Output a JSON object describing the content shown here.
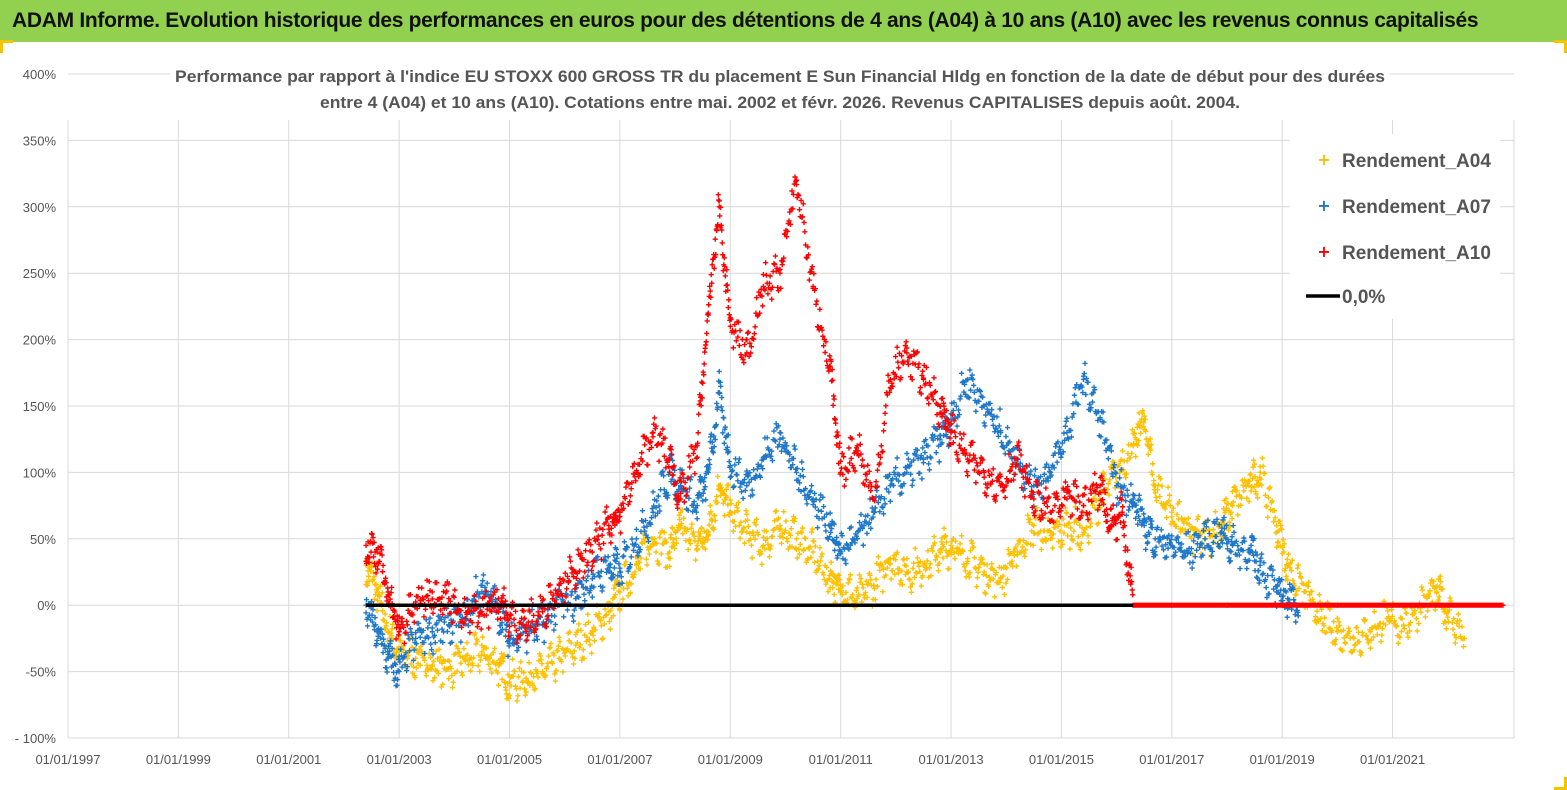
{
  "header": {
    "banner": "ADAM Informe. Evolution historique des performances en euros pour des détentions de 4 ans (A04) à 10 ans (A10) avec les revenus connus capitalisés"
  },
  "colors": {
    "banner_bg": "#92d050",
    "A04": "#ffc000",
    "A07": "#1f77c8",
    "A10": "#ff0000",
    "zero_line": "#000000",
    "grid": "#d9d9d9"
  },
  "chart_data": {
    "type": "scatter",
    "title_line1": "Performance par rapport à l'indice EU STOXX 600 GROSS TR  du placement E Sun Financial Hldg  en fonction de la date de début pour des durées",
    "title_line2": "entre 4 (A04) et 10 ans (A10). Cotations entre mai. 2002 et févr. 2026. Revenus CAPITALISES depuis août. 2004.",
    "x_tick_labels": [
      "01/01/1997",
      "01/01/1999",
      "01/01/2001",
      "01/01/2003",
      "01/01/2005",
      "01/01/2007",
      "01/01/2009",
      "01/01/2011",
      "01/01/2013",
      "01/01/2015",
      "01/01/2017",
      "01/01/2019",
      "01/01/2021"
    ],
    "x_ticks": [
      1997,
      1999,
      2001,
      2003,
      2005,
      2007,
      2009,
      2011,
      2013,
      2015,
      2017,
      2019,
      2021
    ],
    "xlim": [
      1997,
      2023.2
    ],
    "y_tick_labels": [
      "400%",
      "350%",
      "300%",
      "250%",
      "200%",
      "150%",
      "100%",
      "50%",
      "0%",
      "-50%",
      "- 100%"
    ],
    "y_ticks": [
      400,
      350,
      300,
      250,
      200,
      150,
      100,
      50,
      0,
      -50,
      -100
    ],
    "ylim": [
      -100,
      400
    ],
    "grid": true,
    "legend_position": "top-right",
    "series": [
      {
        "name": "Rendement_A04",
        "color": "#ffc000",
        "points": [
          [
            2002.4,
            30
          ],
          [
            2002.6,
            10
          ],
          [
            2002.8,
            -20
          ],
          [
            2003.0,
            -35
          ],
          [
            2003.3,
            -40
          ],
          [
            2003.6,
            -45
          ],
          [
            2003.9,
            -48
          ],
          [
            2004.2,
            -42
          ],
          [
            2004.5,
            -35
          ],
          [
            2004.8,
            -45
          ],
          [
            2005.0,
            -58
          ],
          [
            2005.3,
            -55
          ],
          [
            2005.6,
            -50
          ],
          [
            2005.9,
            -40
          ],
          [
            2006.2,
            -30
          ],
          [
            2006.5,
            -20
          ],
          [
            2006.8,
            -5
          ],
          [
            2007.0,
            10
          ],
          [
            2007.3,
            30
          ],
          [
            2007.6,
            50
          ],
          [
            2007.9,
            40
          ],
          [
            2008.1,
            60
          ],
          [
            2008.4,
            45
          ],
          [
            2008.6,
            55
          ],
          [
            2008.8,
            90
          ],
          [
            2009.0,
            70
          ],
          [
            2009.3,
            55
          ],
          [
            2009.6,
            45
          ],
          [
            2009.9,
            60
          ],
          [
            2010.2,
            50
          ],
          [
            2010.5,
            40
          ],
          [
            2010.8,
            20
          ],
          [
            2011.0,
            15
          ],
          [
            2011.3,
            5
          ],
          [
            2011.6,
            15
          ],
          [
            2011.9,
            35
          ],
          [
            2012.2,
            25
          ],
          [
            2012.5,
            30
          ],
          [
            2012.8,
            40
          ],
          [
            2013.0,
            45
          ],
          [
            2013.3,
            35
          ],
          [
            2013.6,
            25
          ],
          [
            2013.9,
            20
          ],
          [
            2014.2,
            40
          ],
          [
            2014.5,
            60
          ],
          [
            2014.8,
            50
          ],
          [
            2015.1,
            60
          ],
          [
            2015.4,
            55
          ],
          [
            2015.7,
            80
          ],
          [
            2016.0,
            100
          ],
          [
            2016.3,
            120
          ],
          [
            2016.5,
            140
          ],
          [
            2016.7,
            90
          ],
          [
            2017.0,
            70
          ],
          [
            2017.3,
            55
          ],
          [
            2017.6,
            50
          ],
          [
            2017.9,
            60
          ],
          [
            2018.1,
            75
          ],
          [
            2018.4,
            90
          ],
          [
            2018.6,
            100
          ],
          [
            2018.9,
            60
          ],
          [
            2019.1,
            30
          ],
          [
            2019.4,
            10
          ],
          [
            2019.7,
            -10
          ],
          [
            2020.0,
            -20
          ],
          [
            2020.3,
            -25
          ],
          [
            2020.6,
            -20
          ],
          [
            2020.9,
            -10
          ],
          [
            2021.2,
            -15
          ],
          [
            2021.5,
            0
          ],
          [
            2021.8,
            10
          ],
          [
            2022.0,
            -5
          ],
          [
            2022.3,
            -25
          ]
        ]
      },
      {
        "name": "Rendement_A07",
        "color": "#1f77c8",
        "points": [
          [
            2002.4,
            0
          ],
          [
            2002.6,
            -20
          ],
          [
            2002.8,
            -40
          ],
          [
            2003.0,
            -50
          ],
          [
            2003.3,
            -25
          ],
          [
            2003.6,
            -20
          ],
          [
            2003.9,
            -15
          ],
          [
            2004.2,
            -10
          ],
          [
            2004.5,
            15
          ],
          [
            2004.8,
            -5
          ],
          [
            2005.0,
            -25
          ],
          [
            2005.3,
            -20
          ],
          [
            2005.6,
            -15
          ],
          [
            2005.9,
            0
          ],
          [
            2006.2,
            5
          ],
          [
            2006.5,
            20
          ],
          [
            2006.8,
            30
          ],
          [
            2007.0,
            25
          ],
          [
            2007.3,
            50
          ],
          [
            2007.6,
            70
          ],
          [
            2007.9,
            100
          ],
          [
            2008.1,
            90
          ],
          [
            2008.4,
            75
          ],
          [
            2008.6,
            100
          ],
          [
            2008.8,
            160
          ],
          [
            2009.0,
            105
          ],
          [
            2009.3,
            90
          ],
          [
            2009.6,
            110
          ],
          [
            2009.9,
            130
          ],
          [
            2010.2,
            100
          ],
          [
            2010.5,
            80
          ],
          [
            2010.8,
            60
          ],
          [
            2011.0,
            40
          ],
          [
            2011.3,
            50
          ],
          [
            2011.6,
            70
          ],
          [
            2011.9,
            90
          ],
          [
            2012.2,
            100
          ],
          [
            2012.5,
            110
          ],
          [
            2012.8,
            125
          ],
          [
            2013.0,
            140
          ],
          [
            2013.3,
            170
          ],
          [
            2013.6,
            150
          ],
          [
            2013.9,
            130
          ],
          [
            2014.2,
            110
          ],
          [
            2014.5,
            90
          ],
          [
            2014.8,
            100
          ],
          [
            2015.1,
            130
          ],
          [
            2015.4,
            170
          ],
          [
            2015.7,
            140
          ],
          [
            2016.0,
            90
          ],
          [
            2016.3,
            80
          ],
          [
            2016.5,
            60
          ],
          [
            2016.7,
            50
          ],
          [
            2017.0,
            45
          ],
          [
            2017.3,
            40
          ],
          [
            2017.6,
            50
          ],
          [
            2017.9,
            55
          ],
          [
            2018.1,
            45
          ],
          [
            2018.4,
            40
          ],
          [
            2018.6,
            30
          ],
          [
            2018.9,
            10
          ],
          [
            2019.1,
            5
          ],
          [
            2019.3,
            0
          ]
        ]
      },
      {
        "name": "Rendement_A10",
        "color": "#ff0000",
        "points": [
          [
            2002.4,
            45
          ],
          [
            2002.6,
            40
          ],
          [
            2002.8,
            10
          ],
          [
            2003.0,
            -20
          ],
          [
            2003.3,
            0
          ],
          [
            2003.6,
            10
          ],
          [
            2003.9,
            5
          ],
          [
            2004.2,
            -10
          ],
          [
            2004.5,
            -5
          ],
          [
            2004.8,
            5
          ],
          [
            2005.0,
            -10
          ],
          [
            2005.3,
            -15
          ],
          [
            2005.6,
            -5
          ],
          [
            2005.9,
            15
          ],
          [
            2006.2,
            25
          ],
          [
            2006.5,
            40
          ],
          [
            2006.8,
            60
          ],
          [
            2007.0,
            70
          ],
          [
            2007.3,
            100
          ],
          [
            2007.6,
            130
          ],
          [
            2007.9,
            110
          ],
          [
            2008.1,
            80
          ],
          [
            2008.4,
            120
          ],
          [
            2008.6,
            220
          ],
          [
            2008.8,
            300
          ],
          [
            2009.0,
            210
          ],
          [
            2009.3,
            190
          ],
          [
            2009.6,
            240
          ],
          [
            2009.9,
            250
          ],
          [
            2010.2,
            320
          ],
          [
            2010.5,
            240
          ],
          [
            2010.8,
            180
          ],
          [
            2011.0,
            100
          ],
          [
            2011.3,
            120
          ],
          [
            2011.6,
            80
          ],
          [
            2011.9,
            170
          ],
          [
            2012.2,
            190
          ],
          [
            2012.5,
            170
          ],
          [
            2012.8,
            150
          ],
          [
            2013.0,
            130
          ],
          [
            2013.3,
            110
          ],
          [
            2013.6,
            100
          ],
          [
            2013.9,
            90
          ],
          [
            2014.2,
            110
          ],
          [
            2014.5,
            80
          ],
          [
            2014.8,
            70
          ],
          [
            2015.1,
            80
          ],
          [
            2015.4,
            75
          ],
          [
            2015.7,
            90
          ],
          [
            2015.9,
            60
          ],
          [
            2016.1,
            70
          ],
          [
            2016.3,
            0
          ],
          [
            2017.0,
            0
          ],
          [
            2018.0,
            0
          ],
          [
            2019.0,
            0
          ],
          [
            2020.0,
            0
          ],
          [
            2021.0,
            0
          ],
          [
            2022.0,
            0
          ],
          [
            2023.0,
            0
          ]
        ]
      },
      {
        "name": "0,0%",
        "color": "#000000",
        "line": [
          [
            2002.4,
            0
          ],
          [
            2016.3,
            0
          ]
        ]
      }
    ]
  }
}
